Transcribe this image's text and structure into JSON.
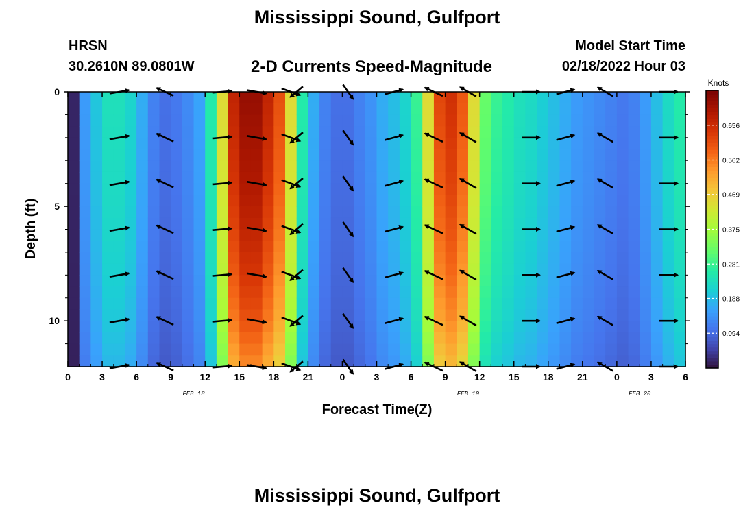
{
  "header": {
    "title": "Mississippi Sound, Gulfport",
    "station": "HRSN",
    "coords": "30.2610N  89.0801W",
    "product": "2-D Currents Speed-Magnitude",
    "model_start_label": "Model Start Time",
    "model_start_value": "02/18/2022 Hour 03",
    "repeated_title": "Mississippi Sound, Gulfport"
  },
  "chart_data": {
    "type": "heatmap",
    "title": "2-D Currents Speed-Magnitude",
    "xlabel": "Forecast Time(Z)",
    "ylabel": "Depth (ft)",
    "x_ticks": [
      "0",
      "3",
      "6",
      "9",
      "12",
      "15",
      "18",
      "21",
      "0",
      "3",
      "6",
      "9",
      "12",
      "15",
      "18",
      "21",
      "0",
      "3",
      "6"
    ],
    "x_range_hours": [
      0,
      54
    ],
    "date_labels": [
      {
        "label": "FEB 18",
        "hour": 11
      },
      {
        "label": "FEB 19",
        "hour": 35
      },
      {
        "label": "FEB 20",
        "hour": 50
      }
    ],
    "y_ticks": [
      0,
      5,
      10
    ],
    "y_range_ft": [
      0,
      12
    ],
    "colorbar": {
      "units": "Knots",
      "tick_values": [
        "0.094",
        "0.188",
        "0.281",
        "0.375",
        "0.469",
        "0.562",
        "0.656"
      ],
      "range": [
        0.0,
        0.75
      ]
    },
    "time_hours": [
      0,
      1,
      2,
      3,
      4,
      5,
      6,
      7,
      8,
      9,
      10,
      11,
      12,
      13,
      14,
      15,
      16,
      17,
      18,
      19,
      20,
      21,
      22,
      23,
      24,
      25,
      26,
      27,
      28,
      29,
      30,
      31,
      32,
      33,
      34,
      35,
      36,
      37,
      38,
      39,
      40,
      41,
      42,
      43,
      44,
      45,
      46,
      47,
      48,
      49,
      50,
      51,
      52,
      53,
      54
    ],
    "surface_speed_knots": [
      0.02,
      0.15,
      0.2,
      0.24,
      0.24,
      0.22,
      0.17,
      0.12,
      0.1,
      0.11,
      0.13,
      0.16,
      0.26,
      0.45,
      0.67,
      0.72,
      0.72,
      0.67,
      0.61,
      0.45,
      0.26,
      0.17,
      0.12,
      0.1,
      0.1,
      0.12,
      0.14,
      0.17,
      0.19,
      0.22,
      0.28,
      0.45,
      0.62,
      0.65,
      0.6,
      0.45,
      0.32,
      0.28,
      0.26,
      0.24,
      0.23,
      0.21,
      0.19,
      0.17,
      0.15,
      0.14,
      0.13,
      0.12,
      0.11,
      0.12,
      0.15,
      0.19,
      0.23,
      0.26,
      0.29
    ],
    "depth_factor": [
      {
        "depth_ft": 0,
        "factor": 1.0
      },
      {
        "depth_ft": 2,
        "factor": 0.98
      },
      {
        "depth_ft": 4,
        "factor": 0.96
      },
      {
        "depth_ft": 6,
        "factor": 0.93
      },
      {
        "depth_ft": 8,
        "factor": 0.89
      },
      {
        "depth_ft": 10,
        "factor": 0.84
      },
      {
        "depth_ft": 12,
        "factor": 0.76
      }
    ],
    "vector_depths_ft": [
      0,
      2,
      4,
      6,
      8,
      10,
      12
    ],
    "vectors": [
      {
        "hour": 4.5,
        "dir_deg": 10,
        "length": 0.9
      },
      {
        "hour": 8.5,
        "dir_deg": 155,
        "length": 0.85
      },
      {
        "hour": 13.5,
        "dir_deg": 5,
        "length": 0.85
      },
      {
        "hour": 16.5,
        "dir_deg": 350,
        "length": 0.9
      },
      {
        "hour": 19.5,
        "dir_deg": 340,
        "length": 0.9
      },
      {
        "hour": 20.0,
        "dir_deg": 220,
        "length": 0.75
      },
      {
        "hour": 24.5,
        "dir_deg": 305,
        "length": 0.8
      },
      {
        "hour": 28.5,
        "dir_deg": 15,
        "length": 0.85
      },
      {
        "hour": 32.0,
        "dir_deg": 155,
        "length": 0.9
      },
      {
        "hour": 35.0,
        "dir_deg": 150,
        "length": 0.85
      },
      {
        "hour": 40.5,
        "dir_deg": 0,
        "length": 0.8
      },
      {
        "hour": 43.5,
        "dir_deg": 15,
        "length": 0.85
      },
      {
        "hour": 47.0,
        "dir_deg": 150,
        "length": 0.8
      },
      {
        "hour": 52.5,
        "dir_deg": 0,
        "length": 0.85
      }
    ]
  },
  "colors": {
    "frame": "#000000",
    "arrows": "#000000"
  }
}
